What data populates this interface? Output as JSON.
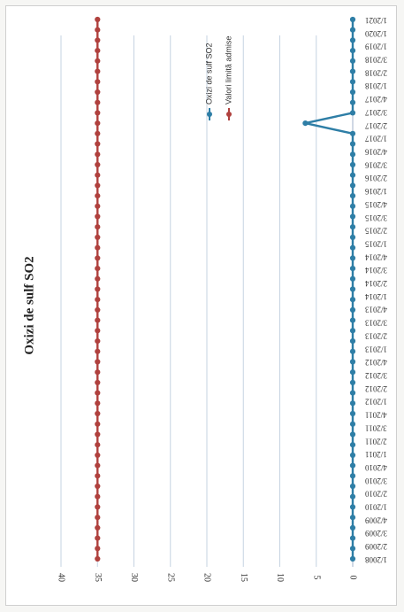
{
  "chart_data": {
    "type": "line",
    "title": "Oxizi de sulf SO2",
    "categories": [
      "1/2008",
      "2/2008",
      "3/2008",
      "4/2008",
      "1/2009",
      "2/2009",
      "3/2009",
      "4/2009",
      "1/2010",
      "2/2010",
      "3/2010",
      "4/2010",
      "1/2011",
      "2/2011",
      "3/2011",
      "4/2011",
      "1/2012",
      "2/2012",
      "3/2012",
      "4/2012",
      "1/2013",
      "2/2013",
      "3/2013",
      "4/2013",
      "1/2014",
      "2/2014",
      "3/2014",
      "4/2014",
      "1/2015",
      "2/2015",
      "3/2015",
      "4/2015",
      "1/2016",
      "2/2016",
      "3/2016",
      "4/2016",
      "1/2017",
      "2/2017",
      "3/2017",
      "4/2017",
      "1/2018",
      "2/2018",
      "3/2018",
      "4/2018",
      "1/2019",
      "2/2019",
      "3/2019",
      "4/2019",
      "1/2020",
      "2/2020",
      "3/2020",
      "4/2020",
      "1/2021"
    ],
    "tick_labels": [
      "1/2008",
      "2/2009",
      "3/2009",
      "4/2009",
      "1/2010",
      "2/2010",
      "3/2010",
      "4/2010",
      "1/2011",
      "2/2011",
      "3/2011",
      "4/2011",
      "1/2012",
      "2/2012",
      "3/2012",
      "4/2012",
      "1/2013",
      "2/2013",
      "3/2013",
      "4/2013",
      "1/2014",
      "2/2014",
      "3/2014",
      "4/2014",
      "1/2015",
      "2/2015",
      "3/2015",
      "4/2015",
      "1/2016",
      "2/2016",
      "3/2016",
      "4/2016",
      "1/2017",
      "2/2017",
      "3/2017",
      "4/2017",
      "1/2018",
      "2/2018",
      "3/2018",
      "1/2019",
      "1/2020",
      "1/2021"
    ],
    "series": [
      {
        "name": "Oxizi de sulf SO2",
        "color": "#2e7ea6",
        "values": [
          0,
          0,
          0,
          0,
          0,
          0,
          0,
          0,
          0,
          0,
          0,
          0,
          0,
          0,
          0,
          0,
          0,
          0,
          0,
          0,
          0,
          0,
          0,
          0,
          0,
          0,
          0,
          0,
          0,
          0,
          0,
          0,
          0,
          0,
          0,
          0,
          0,
          0,
          0,
          0,
          0,
          0,
          6.5,
          0,
          0,
          0,
          0,
          0,
          0,
          0,
          0,
          0,
          0
        ]
      },
      {
        "name": "Valori limită admise",
        "color": "#b0413e",
        "values": [
          35,
          35,
          35,
          35,
          35,
          35,
          35,
          35,
          35,
          35,
          35,
          35,
          35,
          35,
          35,
          35,
          35,
          35,
          35,
          35,
          35,
          35,
          35,
          35,
          35,
          35,
          35,
          35,
          35,
          35,
          35,
          35,
          35,
          35,
          35,
          35,
          35,
          35,
          35,
          35,
          35,
          35,
          35,
          35,
          35,
          35,
          35,
          35,
          35,
          35,
          35,
          35,
          35
        ]
      }
    ],
    "yticks": [
      0,
      5,
      10,
      15,
      20,
      25,
      30,
      35,
      40
    ],
    "ylim": [
      0,
      40
    ],
    "grid": true,
    "legend_placement": "top-right",
    "orientation": "rotated 90 degrees clockwise"
  }
}
